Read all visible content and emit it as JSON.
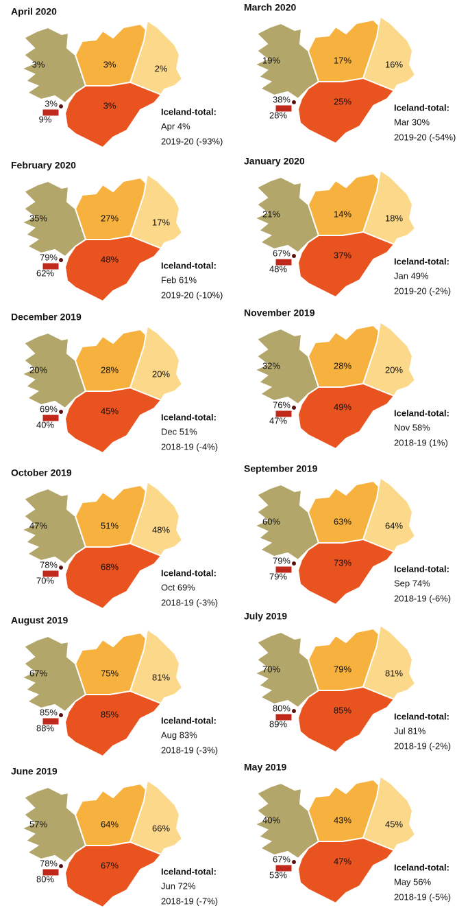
{
  "panels": [
    {
      "title": "April 2020",
      "west": "3%",
      "north": "3%",
      "east": "2%",
      "capital": "3%",
      "southwest": "9%",
      "south": "3%",
      "total_heading": "Iceland-total:",
      "total": "Apr 4%",
      "change": "2019-20 (-93%)"
    },
    {
      "title": "March 2020",
      "west": "19%",
      "north": "17%",
      "east": "16%",
      "capital": "38%",
      "southwest": "28%",
      "south": "25%",
      "total_heading": "Iceland-total:",
      "total": "Mar 30%",
      "change": "2019-20 (-54%)"
    },
    {
      "title": "February 2020",
      "west": "35%",
      "north": "27%",
      "east": "17%",
      "capital": "79%",
      "southwest": "62%",
      "south": "48%",
      "total_heading": "Iceland-total:",
      "total": "Feb 61%",
      "change": "2019-20 (-10%)"
    },
    {
      "title": "January 2020",
      "west": "21%",
      "north": "14%",
      "east": "18%",
      "capital": "67%",
      "southwest": "48%",
      "south": "37%",
      "total_heading": "Iceland-total:",
      "total": "Jan 49%",
      "change": "2019-20 (-2%)"
    },
    {
      "title": "December 2019",
      "west": "20%",
      "north": "28%",
      "east": "20%",
      "capital": "69%",
      "southwest": "40%",
      "south": "45%",
      "total_heading": "Iceland-total:",
      "total": "Dec 51%",
      "change": "2018-19 (-4%)"
    },
    {
      "title": "November 2019",
      "west": "32%",
      "north": "28%",
      "east": "20%",
      "capital": "76%",
      "southwest": "47%",
      "south": "49%",
      "total_heading": "Iceland-total:",
      "total": "Nov 58%",
      "change": "2018-19 (1%)"
    },
    {
      "title": "October 2019",
      "west": "47%",
      "north": "51%",
      "east": "48%",
      "capital": "78%",
      "southwest": "70%",
      "south": "68%",
      "total_heading": "Iceland-total:",
      "total": "Oct 69%",
      "change": "2018-19 (-3%)"
    },
    {
      "title": "September 2019",
      "west": "60%",
      "north": "63%",
      "east": "64%",
      "capital": "79%",
      "southwest": "79%",
      "south": "73%",
      "total_heading": "Iceland-total:",
      "total": "Sep 74%",
      "change": "2018-19 (-6%)"
    },
    {
      "title": "August 2019",
      "west": "67%",
      "north": "75%",
      "east": "81%",
      "capital": "85%",
      "southwest": "88%",
      "south": "85%",
      "total_heading": "Iceland-total:",
      "total": "Aug 83%",
      "change": "2018-19 (-3%)"
    },
    {
      "title": "July 2019",
      "west": "70%",
      "north": "79%",
      "east": "81%",
      "capital": "80%",
      "southwest": "89%",
      "south": "85%",
      "total_heading": "Iceland-total:",
      "total": "Jul 81%",
      "change": "2018-19 (-2%)"
    },
    {
      "title": "June 2019",
      "west": "57%",
      "north": "64%",
      "east": "66%",
      "capital": "78%",
      "southwest": "80%",
      "south": "67%",
      "total_heading": "Iceland-total:",
      "total": "Jun 72%",
      "change": "2018-19 (-7%)"
    },
    {
      "title": "May 2019",
      "west": "40%",
      "north": "43%",
      "east": "45%",
      "capital": "67%",
      "southwest": "53%",
      "south": "47%",
      "total_heading": "Iceland-total:",
      "total": "May 56%",
      "change": "2018-19 (-5%)"
    }
  ]
}
